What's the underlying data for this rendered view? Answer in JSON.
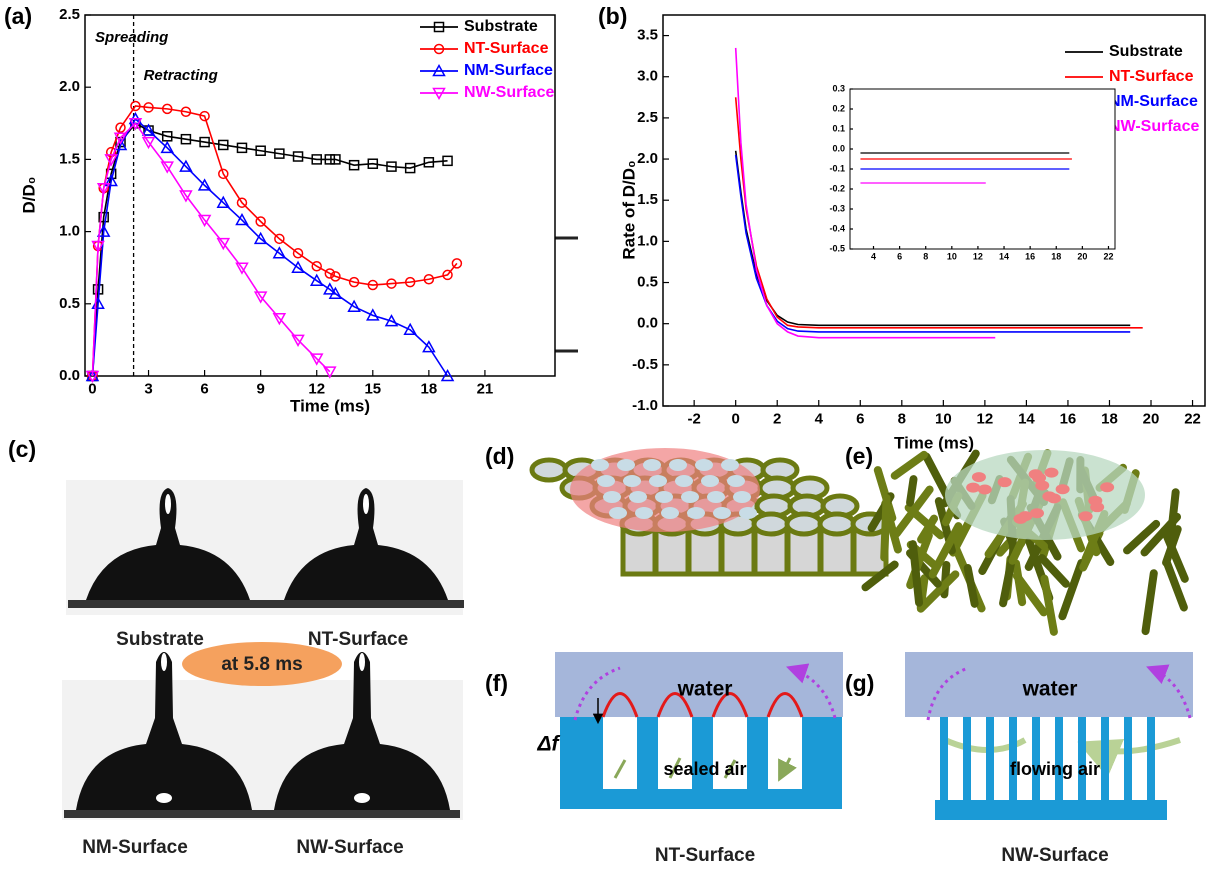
{
  "chart_data": [
    {
      "type": "line",
      "x_label": "Time (ms)",
      "y_label": "D/D₀",
      "annotations": [
        "Spreading",
        "Retracting"
      ],
      "divider_x": 2.2,
      "x": [
        0,
        0.3,
        0.6,
        1,
        1.5,
        2.3,
        3,
        4,
        5,
        6,
        7,
        8,
        9,
        10,
        11,
        12,
        12.7,
        13,
        14,
        15,
        16,
        17,
        18,
        19,
        19.5
      ],
      "series": [
        {
          "name": "Substrate",
          "color": "#000000",
          "marker": "square",
          "values": [
            0,
            0.6,
            1.1,
            1.4,
            1.62,
            1.75,
            1.7,
            1.66,
            1.64,
            1.62,
            1.6,
            1.58,
            1.56,
            1.54,
            1.52,
            1.5,
            1.5,
            1.5,
            1.46,
            1.47,
            1.45,
            1.44,
            1.48,
            1.49,
            null
          ]
        },
        {
          "name": "NT-Surface",
          "color": "#ff0000",
          "marker": "circle",
          "values": [
            0,
            0.9,
            1.3,
            1.55,
            1.72,
            1.87,
            1.86,
            1.85,
            1.83,
            1.8,
            1.4,
            1.2,
            1.07,
            0.95,
            0.85,
            0.76,
            0.71,
            0.69,
            0.65,
            0.63,
            0.64,
            0.65,
            0.67,
            0.7,
            0.78
          ]
        },
        {
          "name": "NM-Surface",
          "color": "#0000ff",
          "marker": "triangle-up",
          "values": [
            0,
            0.5,
            1.0,
            1.35,
            1.6,
            1.78,
            1.7,
            1.58,
            1.45,
            1.32,
            1.2,
            1.08,
            0.95,
            0.85,
            0.75,
            0.66,
            0.6,
            0.57,
            0.48,
            0.42,
            0.38,
            0.32,
            0.2,
            0.0,
            null
          ]
        },
        {
          "name": "NW-Surface",
          "color": "#ff00ff",
          "marker": "triangle-down",
          "values": [
            0,
            0.9,
            1.3,
            1.5,
            1.65,
            1.75,
            1.62,
            1.45,
            1.25,
            1.08,
            0.92,
            0.75,
            0.55,
            0.4,
            0.25,
            0.12,
            0.03,
            null,
            null,
            null,
            null,
            null,
            null,
            null,
            null
          ]
        }
      ],
      "xlim": [
        -0.4,
        24.75
      ],
      "xticks": [
        0,
        3,
        6,
        9,
        12,
        15,
        18,
        21
      ],
      "ylim": [
        0,
        2.5
      ],
      "yticks": [
        {
          "value": 0,
          "label": "0.0"
        },
        0.5,
        {
          "value": 1,
          "label": "1.0"
        },
        1.5,
        {
          "value": 2,
          "label": "2.0"
        },
        2.5
      ],
      "legend": "upper right"
    },
    {
      "type": "line",
      "x_label": "Time (ms)",
      "y_label": "Rate of D/D₀",
      "x": [
        0,
        0.25,
        0.5,
        1,
        1.5,
        2,
        2.5,
        3,
        4,
        12.5,
        19,
        19.6
      ],
      "series": [
        {
          "name": "Substrate",
          "color": "#000000",
          "values": [
            2.1,
            1.6,
            1.15,
            0.6,
            0.28,
            0.1,
            0.02,
            -0.01,
            -0.02,
            -0.02,
            -0.02,
            null
          ]
        },
        {
          "name": "NT-Surface",
          "color": "#ff0000",
          "values": [
            2.75,
            2.0,
            1.4,
            0.7,
            0.3,
            0.08,
            -0.02,
            -0.04,
            -0.05,
            -0.05,
            -0.05,
            -0.05
          ]
        },
        {
          "name": "NM-Surface",
          "color": "#0000ff",
          "values": [
            2.05,
            1.55,
            1.1,
            0.55,
            0.22,
            0.03,
            -0.06,
            -0.09,
            -0.1,
            -0.1,
            -0.1,
            null
          ]
        },
        {
          "name": "NW-Surface",
          "color": "#ff00ff",
          "values": [
            3.35,
            2.2,
            1.45,
            0.65,
            0.22,
            0.0,
            -0.1,
            -0.15,
            -0.17,
            -0.17,
            null,
            null
          ]
        }
      ],
      "xlim": [
        -3.5,
        22.6
      ],
      "xticks": [
        -2,
        0,
        2,
        4,
        6,
        8,
        10,
        12,
        14,
        16,
        18,
        20,
        22
      ],
      "ylim": [
        -1,
        3.75
      ],
      "yticks": [
        {
          "value": -1,
          "label": "-1.0"
        },
        -0.5,
        {
          "value": 0,
          "label": "0.0"
        },
        0.5,
        {
          "value": 1,
          "label": "1.0"
        },
        1.5,
        {
          "value": 2,
          "label": "2.0"
        },
        2.5,
        {
          "value": 3,
          "label": "3.0"
        },
        3.5
      ],
      "legend": "upper right"
    },
    {
      "type": "line",
      "x": [
        3,
        12.6,
        19,
        19.2
      ],
      "series": [
        {
          "color": "#000000",
          "values": [
            -0.02,
            -0.02,
            -0.02,
            null
          ]
        },
        {
          "color": "#ff0000",
          "values": [
            -0.05,
            -0.05,
            -0.05,
            -0.05
          ]
        },
        {
          "color": "#0000ff",
          "values": [
            -0.1,
            -0.1,
            -0.1,
            null
          ]
        },
        {
          "color": "#ff00ff",
          "values": [
            -0.17,
            -0.17,
            null,
            null
          ]
        }
      ],
      "xlim": [
        2.2,
        22.5
      ],
      "xticks": [
        4,
        6,
        8,
        10,
        12,
        14,
        16,
        18,
        20,
        22
      ],
      "ylim": [
        -0.5,
        0.3
      ],
      "yticks": [
        -0.5,
        -0.4,
        -0.3,
        -0.2,
        -0.1,
        {
          "value": 0,
          "label": "0.0"
        },
        0.1,
        0.2,
        0.3
      ]
    }
  ],
  "panel_labels": [
    "(a)",
    "(b)",
    "(c)",
    "(d)",
    "(e)",
    "(f)",
    "(g)"
  ],
  "panel_c": {
    "labels": [
      "Substrate",
      "NT-Surface",
      "NM-Surface",
      "NW-Surface"
    ],
    "time_note": "at 5.8 ms"
  },
  "panel_f": {
    "water": "water",
    "gap": "Δf",
    "air": "sealed  air",
    "caption": "NT-Surface"
  },
  "panel_g": {
    "water": "water",
    "air": "flowing  air",
    "caption": "NW-Surface"
  }
}
